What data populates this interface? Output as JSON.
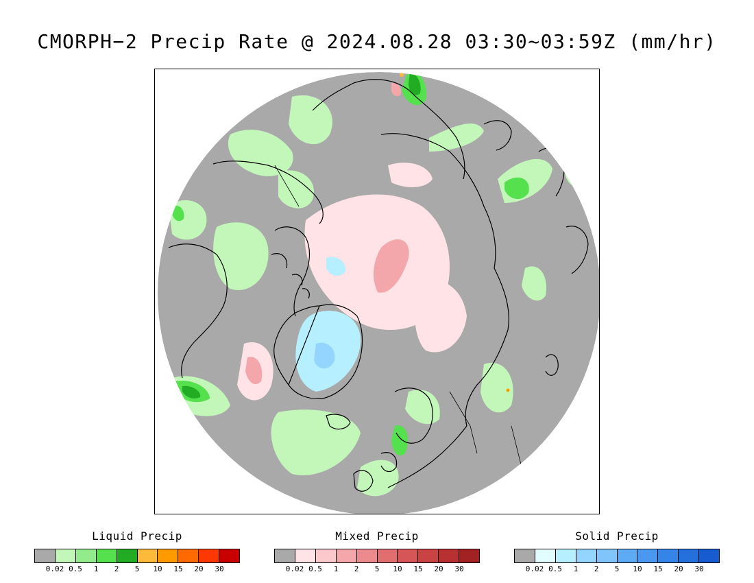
{
  "title": "CMORPH−2 Precip Rate @ 2024.08.28 03:30~03:59Z (mm/hr)",
  "map": {
    "background_color": "#a9a9a9",
    "coastline_color": "#000000",
    "projection": "polar stereographic (north pole)"
  },
  "legends": [
    {
      "title": "Liquid Precip",
      "colors": [
        "#a9a9a9",
        "#c3f7b9",
        "#93ec8c",
        "#55e04e",
        "#22ac24",
        "#fdb939",
        "#ff9a00",
        "#ff6a00",
        "#ff3800",
        "#c90000"
      ],
      "ticks": [
        "0.02",
        "0.5",
        "1",
        "2",
        "5",
        "10",
        "15",
        "20",
        "30"
      ]
    },
    {
      "title": "Mixed Precip",
      "colors": [
        "#a9a9a9",
        "#ffe3e6",
        "#fbc8cb",
        "#f4a7aa",
        "#ec8a8d",
        "#e26e70",
        "#d65657",
        "#c94244",
        "#b93033",
        "#a22123"
      ],
      "ticks": [
        "0.02",
        "0.5",
        "1",
        "2",
        "5",
        "10",
        "15",
        "20",
        "30"
      ]
    },
    {
      "title": "Solid Precip",
      "colors": [
        "#a9a9a9",
        "#e2fdff",
        "#b6efff",
        "#93d5ff",
        "#7fc4fb",
        "#5daaf5",
        "#4a98ef",
        "#3585e8",
        "#2470dc",
        "#165bd0"
      ],
      "ticks": [
        "0.02",
        "0.5",
        "1",
        "2",
        "5",
        "10",
        "15",
        "20",
        "30"
      ]
    }
  ]
}
